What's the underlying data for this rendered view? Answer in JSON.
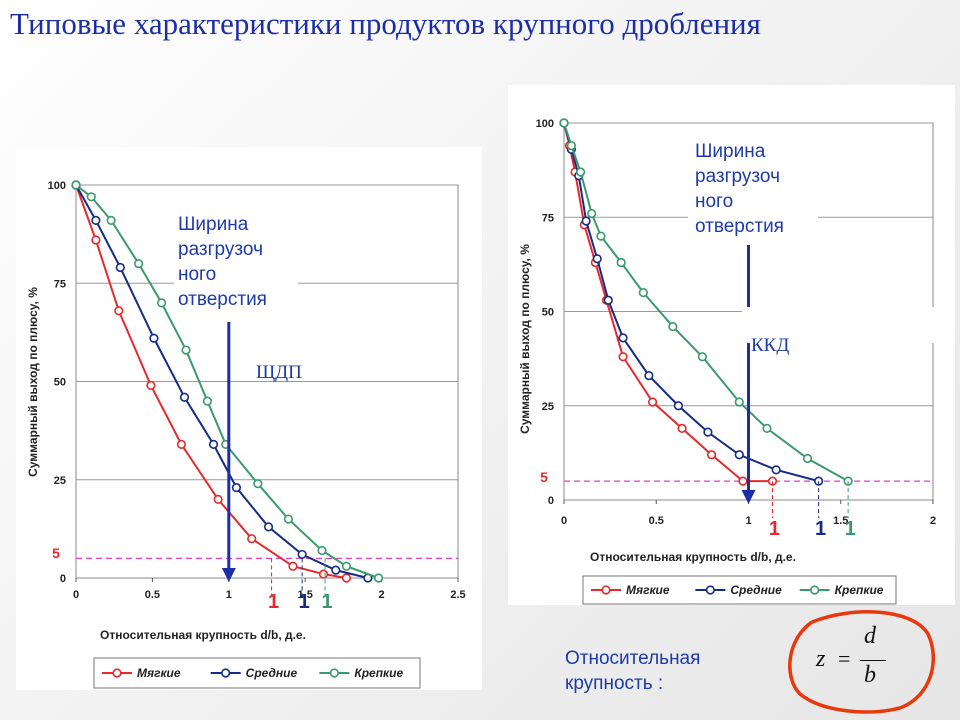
{
  "title": "Типовые характеристики продуктов крупного дробления",
  "colors": {
    "soft": "#e8282c",
    "medium": "#152c84",
    "hard": "#3a9a6c",
    "marker": "#e040c8",
    "arrow": "#1c2da8",
    "title": "#1c2da8"
  },
  "formula": {
    "label": "Относительная крупность :",
    "z": "z",
    "eq": "=",
    "num": "d",
    "den": "b"
  },
  "chart_data": [
    {
      "type": "line",
      "title": "ЩДП",
      "annotation": "Ширина разгрузочного отверстия",
      "annotation_lines": [
        "Ширина",
        "разгрузоч",
        "ного",
        "отверстия"
      ],
      "xlabel": "Относительная крупность d/b, д.е.",
      "ylabel": "Суммарный выход по плюсу, %",
      "xlim": [
        0,
        2.5
      ],
      "ylim": [
        0,
        100
      ],
      "xticks": [
        0,
        0.5,
        1,
        1.5,
        2,
        2.5
      ],
      "xtick_labels": [
        "0",
        "0.5",
        "1",
        "1.5",
        "2",
        "2.5"
      ],
      "yticks": [
        0,
        25,
        50,
        75,
        100
      ],
      "ytick_labels": [
        "0",
        "25",
        "50",
        "75",
        "100"
      ],
      "marker_level": 5,
      "marker_label": "5",
      "arrow_x": 1.0,
      "grid": true,
      "legend": "bottom",
      "series": [
        {
          "name": "Мягкие",
          "color": "#e8282c",
          "x": [
            0,
            0.13,
            0.28,
            0.49,
            0.69,
            0.93,
            1.15,
            1.42,
            1.62,
            1.77
          ],
          "y": [
            100,
            86,
            68,
            49,
            34,
            20,
            10,
            3,
            1,
            0
          ],
          "end_x": 1.28,
          "end_label": "1"
        },
        {
          "name": "Средние",
          "color": "#152c84",
          "x": [
            0,
            0.13,
            0.29,
            0.51,
            0.71,
            0.9,
            1.05,
            1.26,
            1.48,
            1.7,
            1.91
          ],
          "y": [
            100,
            91,
            79,
            61,
            46,
            34,
            23,
            13,
            6,
            2,
            0
          ],
          "end_x": 1.48,
          "end_label": "1"
        },
        {
          "name": "Крепкие",
          "color": "#3a9a6c",
          "x": [
            0,
            0.1,
            0.23,
            0.41,
            0.56,
            0.72,
            0.86,
            0.98,
            1.19,
            1.39,
            1.61,
            1.77,
            1.98
          ],
          "y": [
            100,
            97,
            91,
            80,
            70,
            58,
            45,
            34,
            24,
            15,
            7,
            3,
            0
          ],
          "end_x": 1.63,
          "end_label": "1"
        }
      ]
    },
    {
      "type": "line",
      "title": "ККД",
      "annotation": "Ширина разгрузочного отверстия",
      "annotation_lines": [
        "Ширина",
        "разгрузоч",
        "ного",
        "отверстия"
      ],
      "xlabel": "Относительная крупность d/b, д.е.",
      "ylabel": "Суммарный выход по плюсу, %",
      "xlim": [
        0,
        2
      ],
      "ylim": [
        0,
        100
      ],
      "xticks": [
        0,
        0.5,
        1,
        1.5,
        2
      ],
      "xtick_labels": [
        "0",
        "0.5",
        "1",
        "1.5",
        "2"
      ],
      "yticks": [
        0,
        25,
        50,
        75,
        100
      ],
      "ytick_labels": [
        "0",
        "25",
        "50",
        "75",
        "100"
      ],
      "marker_level": 5,
      "marker_label": "5",
      "arrow_x": 1.0,
      "grid": true,
      "legend": "bottom",
      "series": [
        {
          "name": "Мягкие",
          "color": "#e8282c",
          "x": [
            0,
            0.03,
            0.06,
            0.11,
            0.17,
            0.23,
            0.32,
            0.48,
            0.64,
            0.8,
            0.97,
            1.13
          ],
          "y": [
            100,
            94,
            87,
            73,
            63,
            53,
            38,
            26,
            19,
            12,
            5,
            5
          ],
          "end_x": 1.13,
          "end_label": "1"
        },
        {
          "name": "Средние",
          "color": "#152c84",
          "x": [
            0,
            0.04,
            0.08,
            0.12,
            0.18,
            0.24,
            0.32,
            0.46,
            0.62,
            0.78,
            0.95,
            1.15,
            1.38
          ],
          "y": [
            100,
            93,
            86,
            74,
            64,
            53,
            43,
            33,
            25,
            18,
            12,
            8,
            5
          ],
          "end_x": 1.38,
          "end_label": "1"
        },
        {
          "name": "Крепкие",
          "color": "#3a9a6c",
          "x": [
            0,
            0.04,
            0.09,
            0.15,
            0.2,
            0.31,
            0.43,
            0.59,
            0.75,
            0.95,
            1.1,
            1.32,
            1.54
          ],
          "y": [
            100,
            94,
            87,
            76,
            70,
            63,
            55,
            46,
            38,
            26,
            19,
            11,
            5
          ],
          "end_x": 1.54,
          "end_label": "1"
        }
      ]
    }
  ]
}
